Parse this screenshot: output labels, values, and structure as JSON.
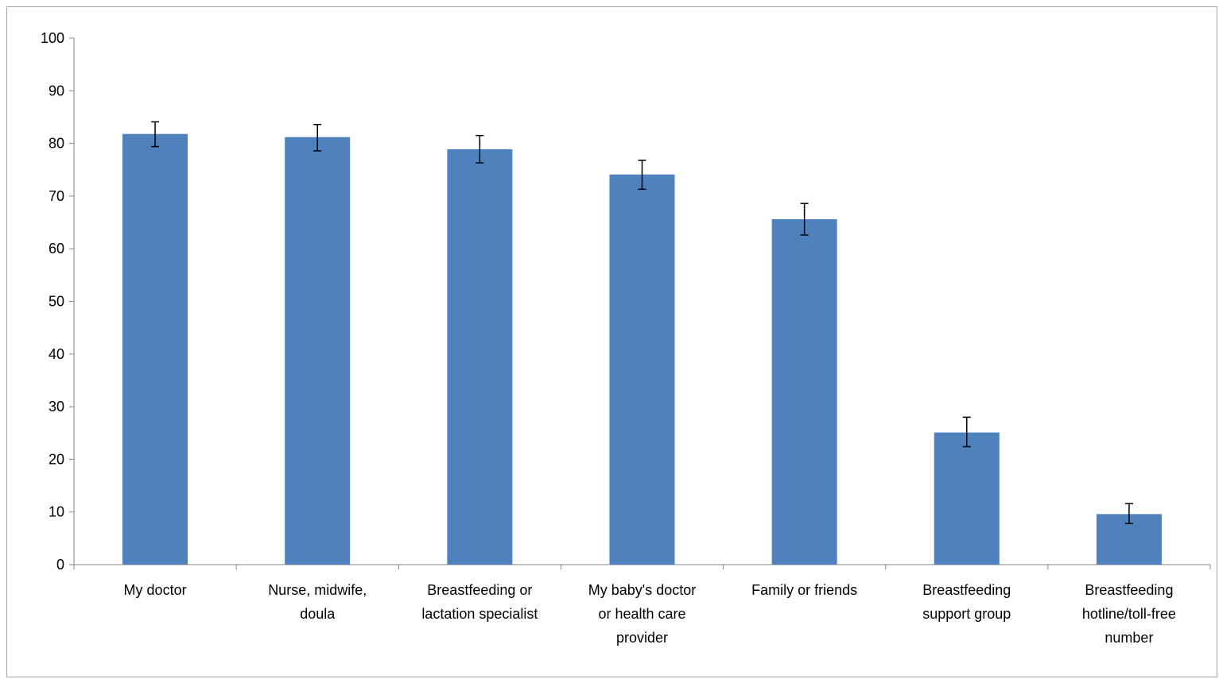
{
  "chart_data": {
    "type": "bar",
    "title": "",
    "xlabel": "",
    "ylabel": "",
    "ylim": [
      0,
      100
    ],
    "yticks": [
      0,
      10,
      20,
      30,
      40,
      50,
      60,
      70,
      80,
      90,
      100
    ],
    "grid": false,
    "legend": "none",
    "bar_color": "#4f81bd",
    "axis_color": "#868686",
    "categories": [
      [
        "My doctor"
      ],
      [
        "Nurse, midwife,",
        "doula"
      ],
      [
        "Breastfeeding or",
        "lactation specialist"
      ],
      [
        "My baby's doctor",
        "or health care",
        "provider"
      ],
      [
        "Family or friends"
      ],
      [
        "Breastfeeding",
        "support group"
      ],
      [
        "Breastfeeding",
        "hotline/toll-free",
        "number"
      ]
    ],
    "values": [
      81.8,
      81.2,
      78.9,
      74.1,
      65.6,
      25.1,
      9.6
    ],
    "error_low": [
      79.4,
      78.6,
      76.3,
      71.3,
      62.6,
      22.4,
      7.8
    ],
    "error_high": [
      84.1,
      83.6,
      81.5,
      76.8,
      68.6,
      28.0,
      11.6
    ]
  }
}
